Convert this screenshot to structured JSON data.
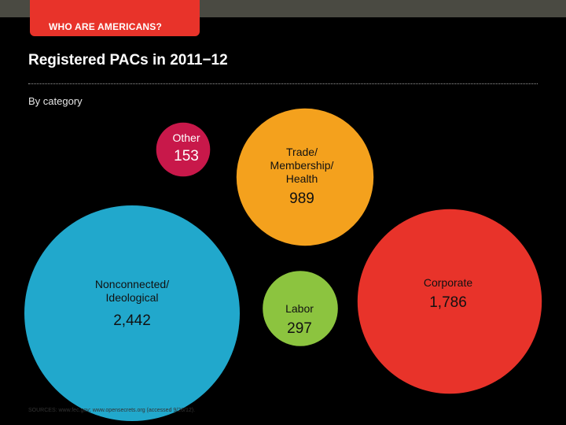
{
  "header": {
    "section_tab": "WHO ARE AMERICANS?"
  },
  "title": "Registered PACs in 2011−12",
  "subtitle": "By category",
  "source": "SOURCES: www.fec.gov; www.opensecrets.org (accessed 9/26/12).",
  "colors": {
    "topbar": "#4a4a42",
    "accent": "#e8332a",
    "background": "#000000"
  },
  "chart_data": {
    "type": "bubble",
    "title": "Registered PACs in 2011−12",
    "subtitle": "By category",
    "items": [
      {
        "category": "Other",
        "value": 153,
        "label": "153",
        "color": "#c8184a"
      },
      {
        "category": "Trade/ Membership/ Health",
        "value": 989,
        "label": "989",
        "color": "#f4a11d"
      },
      {
        "category": "Nonconnected/ Ideological",
        "value": 2442,
        "label": "2,442",
        "color": "#21a8cc"
      },
      {
        "category": "Labor",
        "value": 297,
        "label": "297",
        "color": "#8cc43f"
      },
      {
        "category": "Corporate",
        "value": 1786,
        "label": "1,786",
        "color": "#e8332a"
      }
    ]
  }
}
